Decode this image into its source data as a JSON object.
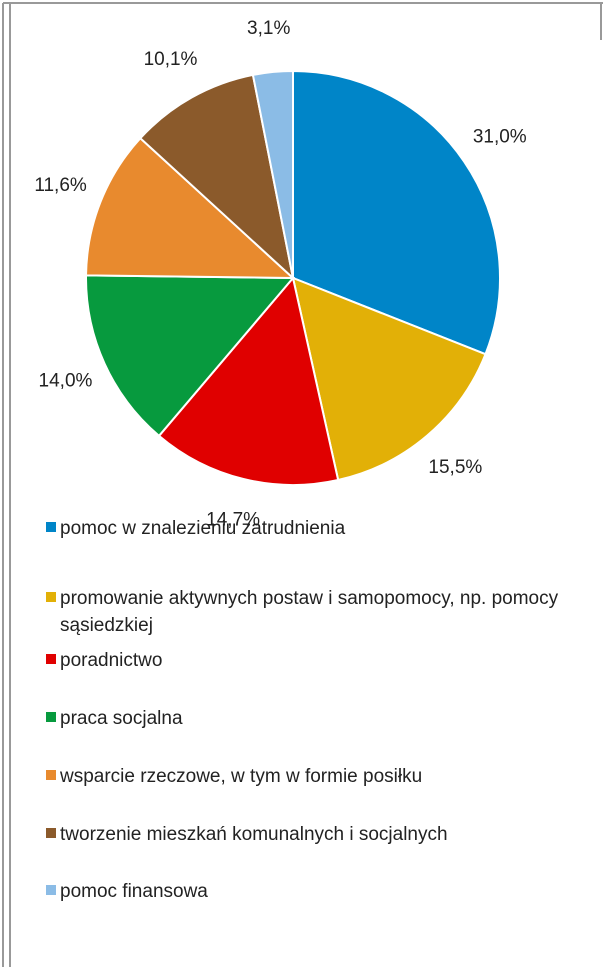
{
  "chart_data": {
    "type": "pie",
    "categories": [
      "pomoc w znalezieniu zatrudnienia",
      "promowanie aktywnych postaw i samopomocy, np. pomocy sąsiedzkiej",
      "poradnictwo",
      "praca socjalna",
      "wsparcie rzeczowe, w tym w formie posiłku",
      "tworzenie mieszkań komunalnych i socjalnych",
      "pomoc finansowa"
    ],
    "values": [
      31.0,
      15.5,
      14.7,
      14.0,
      11.6,
      10.1,
      3.1
    ],
    "value_labels": [
      "31,0%",
      "15,5%",
      "14,7%",
      "14,0%",
      "11,6%",
      "10,1%",
      "3,1%"
    ],
    "colors": [
      "#0085c8",
      "#e2b007",
      "#e00000",
      "#079a3e",
      "#e88a2e",
      "#8b5a2b",
      "#8bbce6"
    ],
    "legend": "bottom"
  }
}
